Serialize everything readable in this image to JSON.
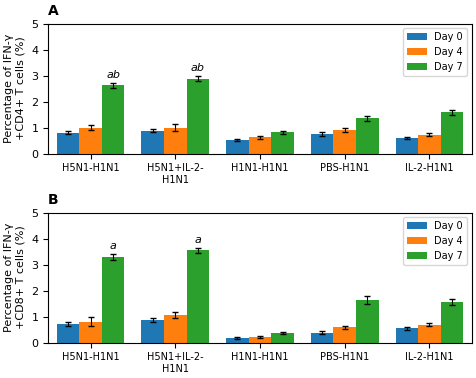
{
  "chart_data": [
    {
      "type": "bar",
      "title": "A",
      "categories": [
        "H5N1-H1N1",
        "H5N1+IL-2-\nH1N1",
        "H1N1-H1N1",
        "PBS-H1N1",
        "IL-2-H1N1"
      ],
      "y_label": "Percentage of IFN-γ\n+CD4+ T cells (%)",
      "series": [
        {
          "name": "Day 0",
          "values": [
            0.8,
            0.88,
            0.52,
            0.75,
            0.6
          ],
          "errors": [
            0.06,
            0.07,
            0.04,
            0.06,
            0.05
          ]
        },
        {
          "name": "Day 4",
          "values": [
            1.0,
            1.0,
            0.62,
            0.92,
            0.72
          ],
          "errors": [
            0.1,
            0.12,
            0.05,
            0.08,
            0.06
          ]
        },
        {
          "name": "Day 7",
          "values": [
            2.62,
            2.88,
            0.82,
            1.35,
            1.58
          ],
          "errors": [
            0.1,
            0.1,
            0.06,
            0.1,
            0.1
          ]
        }
      ],
      "annotations": [
        {
          "text": "ab",
          "category": "H5N1-H1N1",
          "series": "Day 7"
        },
        {
          "text": "ab",
          "category": "H5N1+IL-2-\nH1N1",
          "series": "Day 7"
        }
      ],
      "ylim": [
        0,
        5
      ],
      "yticks": [
        0,
        1,
        2,
        3,
        4,
        5
      ],
      "legend": "upper right"
    },
    {
      "type": "bar",
      "title": "B",
      "categories": [
        "H5N1-H1N1",
        "H5N1+IL-2-\nH1N1",
        "H1N1-H1N1",
        "PBS-H1N1",
        "IL-2-H1N1"
      ],
      "y_label": "Percentage of IFN-γ\n+CD8+ T cells (%)",
      "series": [
        {
          "name": "Day 0",
          "values": [
            0.72,
            0.88,
            0.18,
            0.38,
            0.55
          ],
          "errors": [
            0.07,
            0.08,
            0.03,
            0.05,
            0.05
          ]
        },
        {
          "name": "Day 4",
          "values": [
            0.8,
            1.05,
            0.22,
            0.58,
            0.68
          ],
          "errors": [
            0.18,
            0.12,
            0.04,
            0.07,
            0.06
          ]
        },
        {
          "name": "Day 7",
          "values": [
            3.3,
            3.55,
            0.35,
            1.62,
            1.55
          ],
          "errors": [
            0.12,
            0.1,
            0.04,
            0.15,
            0.12
          ]
        }
      ],
      "annotations": [
        {
          "text": "a",
          "category": "H5N1-H1N1",
          "series": "Day 7"
        },
        {
          "text": "a",
          "category": "H5N1+IL-2-\nH1N1",
          "series": "Day 7"
        }
      ],
      "ylim": [
        0,
        5
      ],
      "yticks": [
        0,
        1,
        2,
        3,
        4,
        5
      ],
      "legend": "upper right"
    }
  ]
}
